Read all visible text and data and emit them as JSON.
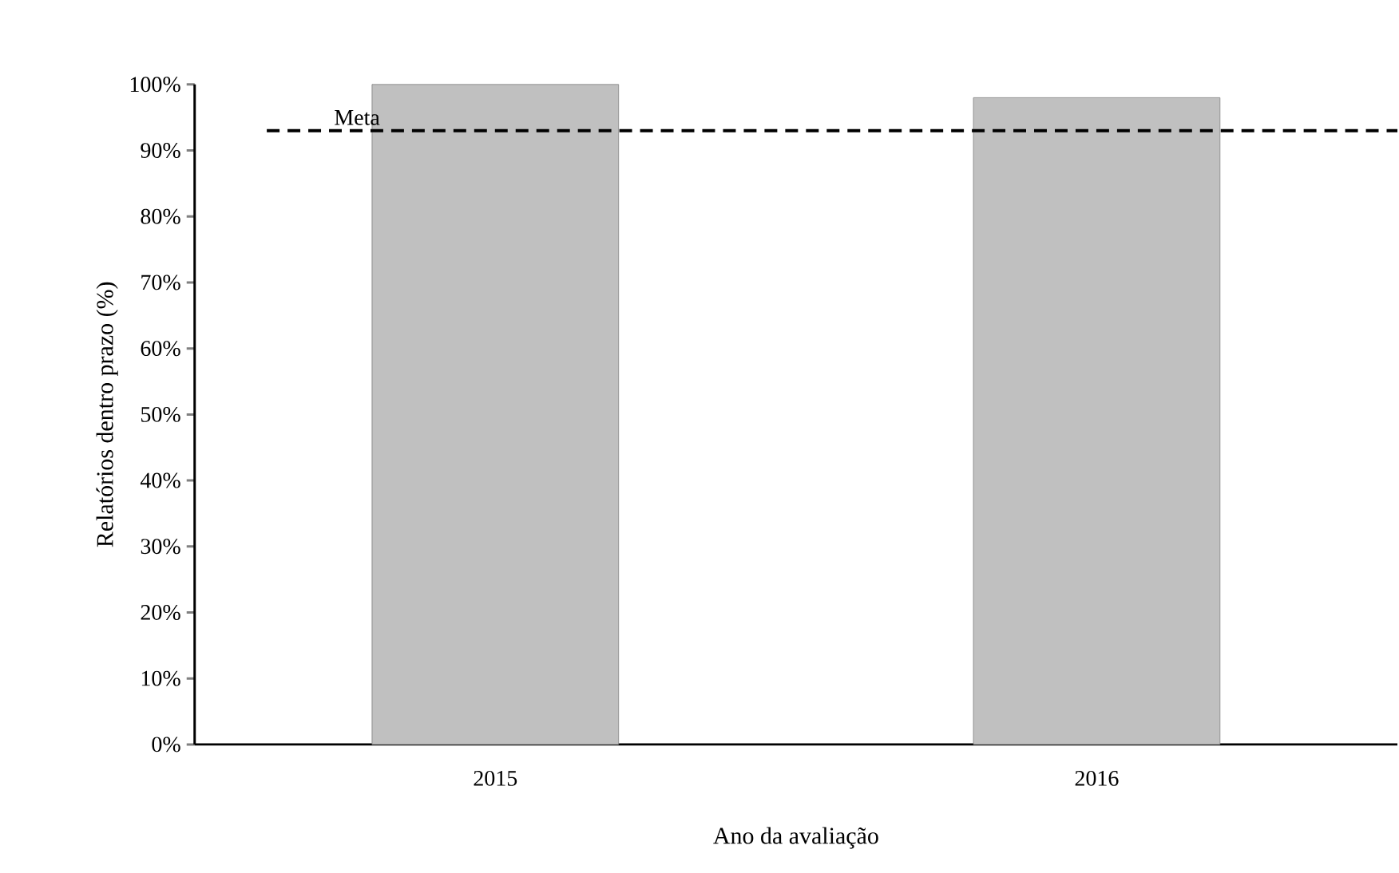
{
  "chart_data": {
    "type": "bar",
    "xlabel": "Ano da avaliação",
    "ylabel": "Relatórios dentro prazo (%)",
    "categories": [
      "2015",
      "2016"
    ],
    "values": [
      100,
      98
    ],
    "color": "#c0c0c0",
    "ylim": [
      0,
      100
    ],
    "yticks": [
      {
        "value": 0,
        "label": "0%"
      },
      {
        "value": 10,
        "label": "10%"
      },
      {
        "value": 20,
        "label": "20%"
      },
      {
        "value": 30,
        "label": "30%"
      },
      {
        "value": 40,
        "label": "40%"
      },
      {
        "value": 50,
        "label": "50%"
      },
      {
        "value": 60,
        "label": "60%"
      },
      {
        "value": 70,
        "label": "70%"
      },
      {
        "value": 80,
        "label": "80%"
      },
      {
        "value": 90,
        "label": "90%"
      },
      {
        "value": 100,
        "label": "100%"
      }
    ],
    "ref_lines": [
      {
        "axis": "y",
        "value": 93,
        "label": "Meta",
        "color": "#000000",
        "line_style": "dashed"
      }
    ],
    "grid": false
  }
}
